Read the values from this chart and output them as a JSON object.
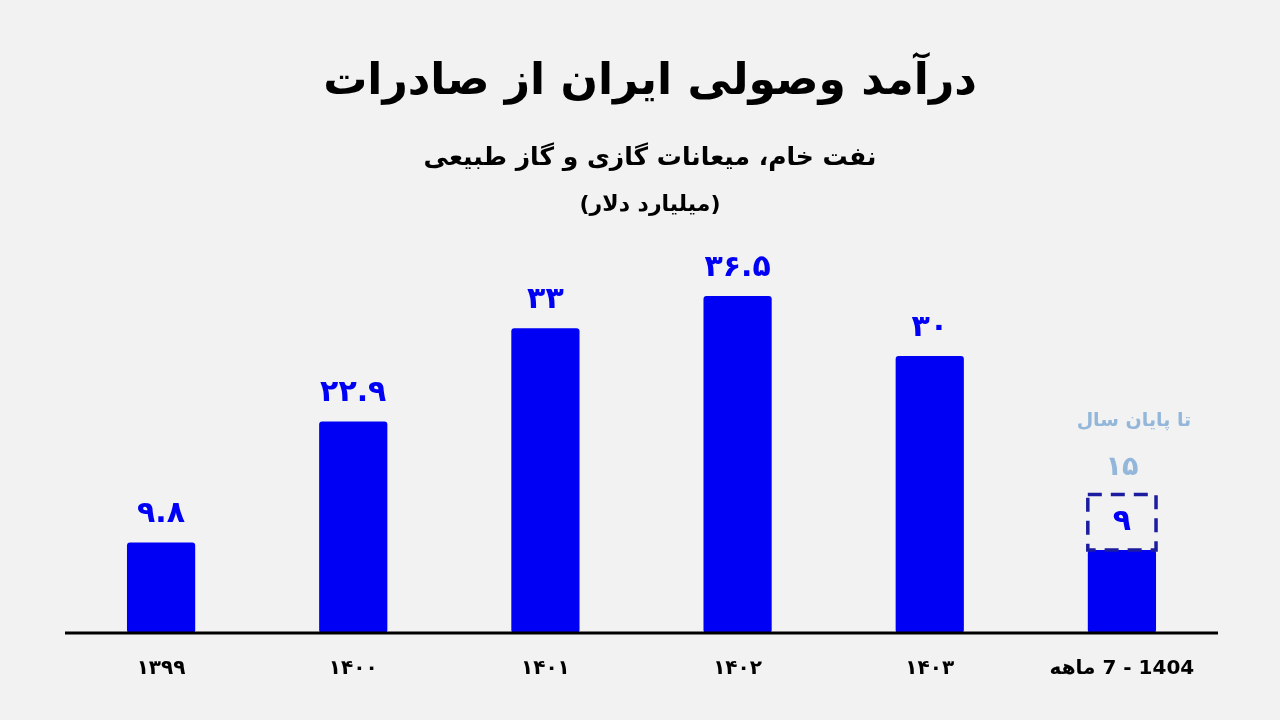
{
  "chart_data": {
    "type": "bar",
    "title": "درآمد وصولی ایران از صادرات",
    "subtitle": "نفت خام، میعانات گازی و گاز طبیعی",
    "ylabel": "(میلیارد دلار)",
    "categories": [
      "۱۳۹۹",
      "۱۴۰۰",
      "۱۴۰۱",
      "۱۴۰۲",
      "۱۴۰۳",
      "1404 - 7 ماهه"
    ],
    "stacked": true,
    "series": [
      {
        "color": "#0000f5",
        "values": [
          9.8,
          22.9,
          33,
          36.5,
          30,
          9
        ],
        "value_labels": [
          "۹.۸",
          "۲۲.۹",
          "۳۳",
          "۳۶.۵",
          "۳۰",
          "۹"
        ]
      },
      {
        "color": "#1c1ca0",
        "line_style": "dashed",
        "values": [
          null,
          null,
          null,
          null,
          null,
          6
        ]
      }
    ],
    "totals": [
      null,
      null,
      null,
      null,
      null,
      "۱۵"
    ],
    "annotations": [
      "تا پایان سال"
    ]
  }
}
